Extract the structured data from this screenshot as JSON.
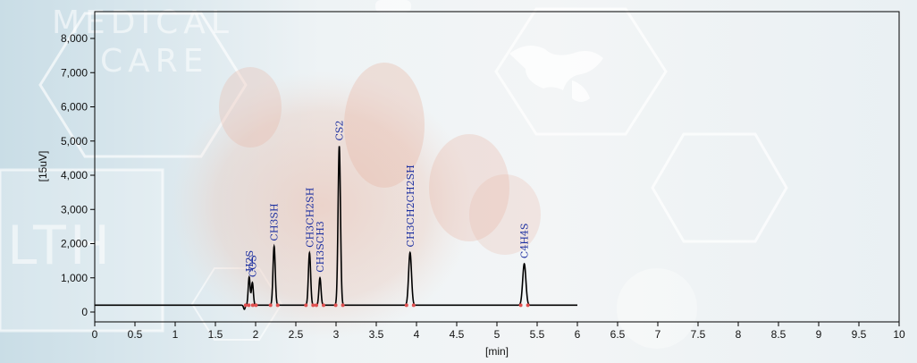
{
  "background": {
    "watermark_lines": [
      "MEDICAL",
      "CARE"
    ],
    "watermark_side": "LTH"
  },
  "chart_data": {
    "type": "line",
    "title": "",
    "xlabel": "[min]",
    "ylabel": "[15uV]",
    "xlim": [
      0,
      10
    ],
    "ylim": [
      -250,
      8500
    ],
    "x_ticks": [
      0,
      0.5,
      1,
      1.5,
      2,
      2.5,
      3,
      3.5,
      4,
      4.5,
      5,
      5.5,
      6,
      6.5,
      7,
      7.5,
      8,
      8.5,
      9,
      9.5,
      10
    ],
    "x_tick_labels": [
      "0",
      "0.5",
      "1",
      "1.5",
      "2",
      "2.5",
      "3",
      "3.5",
      "4",
      "4.5",
      "5",
      "5.5",
      "6",
      "6.5",
      "7",
      "7.5",
      "8",
      "8.5",
      "9",
      "9.5",
      "10"
    ],
    "y_ticks": [
      0,
      1000,
      2000,
      3000,
      4000,
      5000,
      6000,
      7000,
      8000
    ],
    "y_tick_labels": [
      "0",
      "1,000",
      "2,000",
      "3,000",
      "4,000",
      "5,000",
      "6,000",
      "7,000",
      "8,000"
    ],
    "grid": false,
    "baseline": 200,
    "trace_range": [
      0,
      6
    ],
    "line_color": "#000000",
    "label_color": "#1c2fa0",
    "marker_color": "#e05050",
    "peaks": [
      {
        "label": "H2S",
        "x": 1.92,
        "height": 820,
        "width": 0.012
      },
      {
        "label": "COS",
        "x": 1.96,
        "height": 660,
        "width": 0.012
      },
      {
        "label": "CH3SH",
        "x": 2.23,
        "height": 1720,
        "width": 0.014
      },
      {
        "label": "CH3CH2SH",
        "x": 2.67,
        "height": 1530,
        "width": 0.014
      },
      {
        "label": "CH3SCH3",
        "x": 2.8,
        "height": 800,
        "width": 0.013
      },
      {
        "label": "CS2",
        "x": 3.04,
        "height": 4650,
        "width": 0.015
      },
      {
        "label": "CH3CH2CH2SH",
        "x": 3.92,
        "height": 1540,
        "width": 0.018
      },
      {
        "label": "C4H4S",
        "x": 5.34,
        "height": 1210,
        "width": 0.02
      }
    ]
  }
}
